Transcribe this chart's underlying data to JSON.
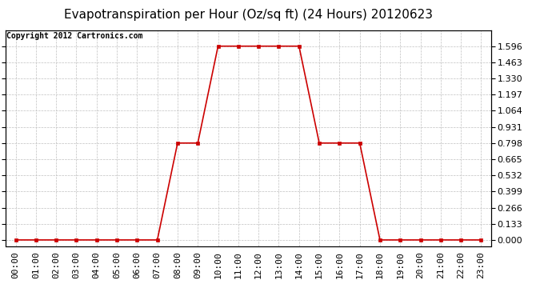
{
  "title": "Evapotranspiration per Hour (Oz/sq ft) (24 Hours) 20120623",
  "copyright_text": "Copyright 2012 Cartronics.com",
  "hours": [
    0,
    1,
    2,
    3,
    4,
    5,
    6,
    7,
    8,
    9,
    10,
    11,
    12,
    13,
    14,
    15,
    16,
    17,
    18,
    19,
    20,
    21,
    22,
    23
  ],
  "values": [
    0.0,
    0.0,
    0.0,
    0.0,
    0.0,
    0.0,
    0.0,
    0.0,
    0.798,
    0.798,
    1.596,
    1.596,
    1.596,
    1.596,
    1.596,
    0.798,
    0.798,
    0.798,
    0.0,
    0.0,
    0.0,
    0.0,
    0.0,
    0.0
  ],
  "xlabels": [
    "00:00",
    "01:00",
    "02:00",
    "03:00",
    "04:00",
    "05:00",
    "06:00",
    "07:00",
    "08:00",
    "09:00",
    "10:00",
    "11:00",
    "12:00",
    "13:00",
    "14:00",
    "15:00",
    "16:00",
    "17:00",
    "18:00",
    "19:00",
    "20:00",
    "21:00",
    "22:00",
    "23:00"
  ],
  "yticks": [
    0.0,
    0.133,
    0.266,
    0.399,
    0.532,
    0.665,
    0.798,
    0.931,
    1.064,
    1.197,
    1.33,
    1.463,
    1.596
  ],
  "ymax": 1.729,
  "ymin": -0.05,
  "line_color": "#cc0000",
  "marker_color": "#cc0000",
  "bg_color": "#ffffff",
  "plot_bg_color": "#ffffff",
  "grid_color": "#c0c0c0",
  "title_fontsize": 11,
  "copyright_fontsize": 7,
  "tick_fontsize": 8,
  "marker_size": 3,
  "line_width": 1.2
}
